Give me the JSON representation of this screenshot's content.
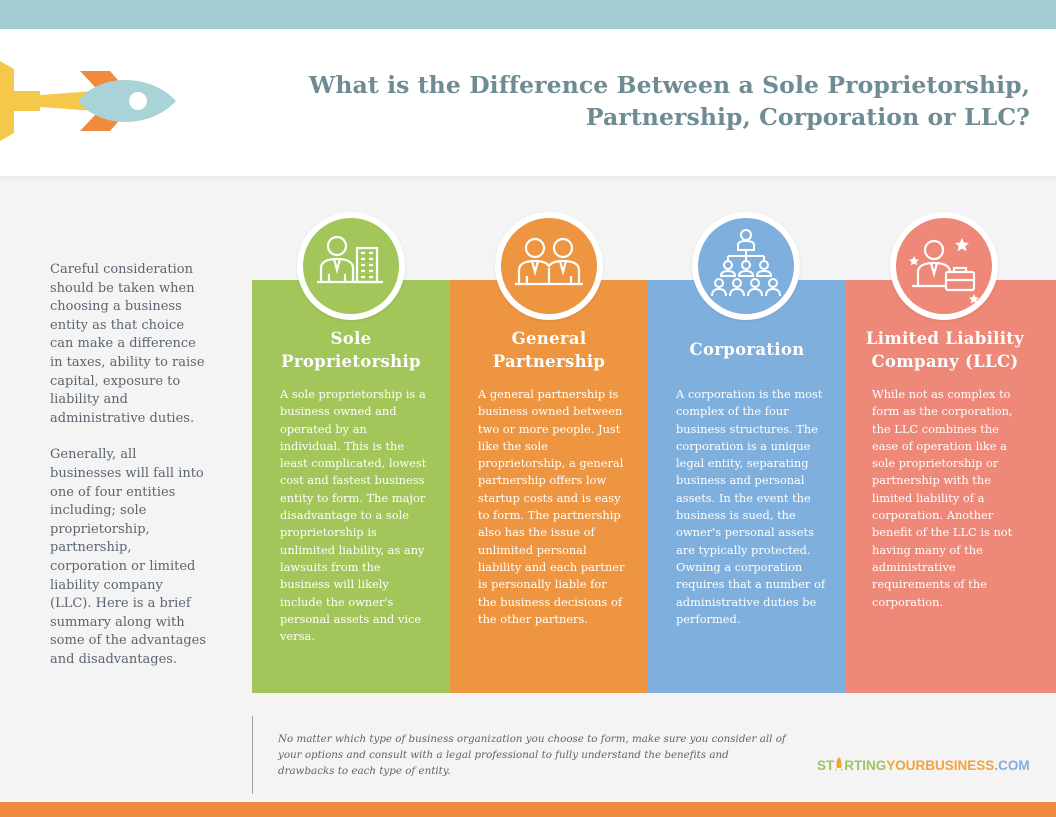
{
  "title": {
    "line1": "What is the Difference Between a Sole Proprietorship,",
    "line2": "Partnership, Corporation or LLC?"
  },
  "intro": {
    "p1": "Careful consideration should be taken when choosing a business entity as that choice can make a difference in taxes, ability to raise capital, exposure to liability and administrative duties.",
    "p2": "Generally, all businesses will fall into one of four entities including; sole proprietorship, partnership, corporation or limited liability company (LLC).  Here is a brief summary along with some of the advantages and disadvantages."
  },
  "cards": [
    {
      "title_line1": "Sole",
      "title_line2": "Proprietorship",
      "color": "#a2c65a",
      "icon": "businessman-building-icon",
      "body": "A sole proprietorship is a business owned and operated by an individual. This is the least complicated, lowest cost and fastest business entity to form. The major disadvantage to a sole proprietorship is unlimited liability, as any lawsuits from the business will likely include the owner's personal assets and vice versa."
    },
    {
      "title_line1": "General",
      "title_line2": "Partnership",
      "color": "#ee9542",
      "icon": "two-partners-icon",
      "body": "A general partnership is business owned between two or more people.  Just like the sole proprietorship, a general partnership offers low startup costs and is easy to form. The partnership also has the issue of unlimited personal liability and each partner is personally liable for the business decisions of the other partners."
    },
    {
      "title_line1": "Corporation",
      "title_line2": "",
      "color": "#7fb0dd",
      "icon": "org-chart-icon",
      "body": "A corporation is the most complex of the four business structures.  The corporation is a unique legal entity, separating business and personal assets. In the event the business is sued, the owner's personal assets are typically protected. Owning a corporation requires that a number of administrative duties be performed."
    },
    {
      "title_line1": "Limited Liability",
      "title_line2": "Company (LLC)",
      "color": "#ee8878",
      "icon": "businessman-briefcase-stars-icon",
      "body": "While not as complex to form as the corporation, the LLC combines the ease of operation like a sole proprietorship or partnership with the limited liability of a corporation. Another benefit of the LLC is not having many of the administrative requirements of the corporation."
    }
  ],
  "footnote": "No matter which type of business organization you choose to form, make sure you consider all of your options and consult with a legal professional to fully understand the benefits and drawbacks to each type of entity.",
  "brand": {
    "part1": "ST",
    "part2": "RTING",
    "part3": "YOUR",
    "part4": "BUSINESS",
    "part5": ".COM"
  },
  "colors": {
    "top_band": "#a4cdd4",
    "bottom_band": "#ef8a3f",
    "title": "#6f8b93"
  }
}
